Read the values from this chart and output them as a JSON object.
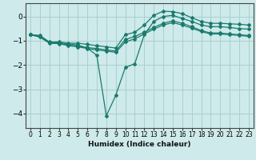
{
  "xlabel": "Humidex (Indice chaleur)",
  "ylabel": "",
  "background_color": "#ceeaea",
  "grid_color": "#aacfcf",
  "line_color": "#1a7a6e",
  "xlim": [
    -0.5,
    23.5
  ],
  "ylim": [
    -4.6,
    0.55
  ],
  "xticks": [
    0,
    1,
    2,
    3,
    4,
    5,
    6,
    7,
    8,
    9,
    10,
    11,
    12,
    13,
    14,
    15,
    16,
    17,
    18,
    19,
    20,
    21,
    22,
    23
  ],
  "yticks": [
    0,
    -1,
    -2,
    -3,
    -4
  ],
  "series": [
    {
      "x": [
        0,
        1,
        2,
        3,
        4,
        5,
        6,
        7,
        8,
        9,
        10,
        11,
        12,
        13,
        14,
        15,
        16,
        17,
        18,
        19,
        20,
        21,
        22,
        23
      ],
      "y": [
        -0.75,
        -0.78,
        -1.05,
        -1.05,
        -1.1,
        -1.1,
        -1.15,
        -1.2,
        -1.25,
        -1.3,
        -0.75,
        -0.65,
        -0.35,
        0.05,
        0.22,
        0.2,
        0.12,
        -0.05,
        -0.2,
        -0.28,
        -0.28,
        -0.3,
        -0.32,
        -0.35
      ]
    },
    {
      "x": [
        0,
        1,
        2,
        3,
        4,
        5,
        6,
        7,
        8,
        9,
        10,
        11,
        12,
        13,
        14,
        15,
        16,
        17,
        18,
        19,
        20,
        21,
        22,
        23
      ],
      "y": [
        -0.75,
        -0.8,
        -1.08,
        -1.08,
        -1.12,
        -1.18,
        -1.3,
        -1.6,
        -4.1,
        -3.25,
        -2.1,
        -1.95,
        -0.75,
        -0.2,
        0.0,
        0.05,
        -0.08,
        -0.2,
        -0.35,
        -0.42,
        -0.42,
        -0.45,
        -0.5,
        -0.52
      ]
    },
    {
      "x": [
        0,
        1,
        2,
        3,
        4,
        5,
        6,
        7,
        8,
        9,
        10,
        11,
        12,
        13,
        14,
        15,
        16,
        17,
        18,
        19,
        20,
        21,
        22,
        23
      ],
      "y": [
        -0.75,
        -0.82,
        -1.08,
        -1.1,
        -1.18,
        -1.22,
        -1.28,
        -1.32,
        -1.38,
        -1.42,
        -0.95,
        -0.82,
        -0.65,
        -0.45,
        -0.28,
        -0.18,
        -0.28,
        -0.42,
        -0.58,
        -0.68,
        -0.68,
        -0.72,
        -0.75,
        -0.78
      ]
    },
    {
      "x": [
        0,
        1,
        2,
        3,
        4,
        5,
        6,
        7,
        8,
        9,
        10,
        11,
        12,
        13,
        14,
        15,
        16,
        17,
        18,
        19,
        20,
        21,
        22,
        23
      ],
      "y": [
        -0.75,
        -0.85,
        -1.1,
        -1.12,
        -1.2,
        -1.25,
        -1.32,
        -1.38,
        -1.42,
        -1.48,
        -1.05,
        -0.92,
        -0.72,
        -0.52,
        -0.35,
        -0.25,
        -0.35,
        -0.48,
        -0.62,
        -0.72,
        -0.72,
        -0.75,
        -0.78,
        -0.82
      ]
    }
  ]
}
